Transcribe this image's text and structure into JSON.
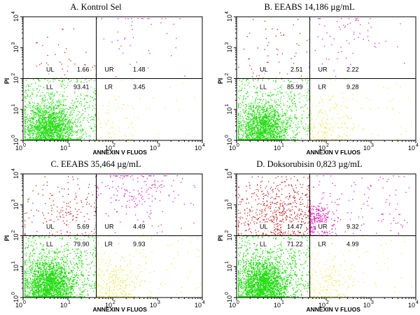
{
  "chart_data": [
    {
      "type": "scatter",
      "title": "A. Kontrol Sel",
      "xlabel": "ANNEXIN V FLUOS",
      "ylabel": "PI",
      "x_scale": "log",
      "y_scale": "log",
      "xlim": [
        1,
        10000
      ],
      "ylim": [
        1,
        10000
      ],
      "x_ticks": [
        "10",
        "10",
        "10",
        "10",
        "10"
      ],
      "x_tick_exponents": [
        "0",
        "1",
        "2",
        "3",
        "4"
      ],
      "y_ticks": [
        "10",
        "10",
        "10",
        "10",
        "10"
      ],
      "y_tick_exponents": [
        "0",
        "1",
        "2",
        "3",
        "4"
      ],
      "quadrant_gate": {
        "x": 43,
        "y": 100
      },
      "quadrants": [
        {
          "label": "UL",
          "value": "1.66"
        },
        {
          "label": "UR",
          "value": "1.48"
        },
        {
          "label": "LL",
          "value": "93.41"
        },
        {
          "label": "LR",
          "value": "3.45"
        }
      ]
    },
    {
      "type": "scatter",
      "title": "B. EEABS 14,186 µg/mL",
      "xlabel": "ANNEXIN V FLUOS",
      "ylabel": "PI",
      "x_scale": "log",
      "y_scale": "log",
      "xlim": [
        1,
        10000
      ],
      "ylim": [
        1,
        10000
      ],
      "x_ticks": [
        "10",
        "10",
        "10",
        "10",
        "10"
      ],
      "x_tick_exponents": [
        "0",
        "1",
        "2",
        "3",
        "4"
      ],
      "y_ticks": [
        "10",
        "10",
        "10",
        "10",
        "10"
      ],
      "y_tick_exponents": [
        "0",
        "1",
        "2",
        "3",
        "4"
      ],
      "quadrant_gate": {
        "x": 43,
        "y": 100
      },
      "quadrants": [
        {
          "label": "UL",
          "value": "2.51"
        },
        {
          "label": "UR",
          "value": "2.22"
        },
        {
          "label": "LL",
          "value": "85.99"
        },
        {
          "label": "LR",
          "value": "9.28"
        }
      ]
    },
    {
      "type": "scatter",
      "title": "C. EEABS 35,464 µg/mL",
      "xlabel": "ANNEXIN V FLUOS",
      "ylabel": "PI",
      "x_scale": "log",
      "y_scale": "log",
      "xlim": [
        1,
        10000
      ],
      "ylim": [
        1,
        10000
      ],
      "x_ticks": [
        "10",
        "10",
        "10",
        "10",
        "10"
      ],
      "x_tick_exponents": [
        "0",
        "1",
        "2",
        "3",
        "4"
      ],
      "y_ticks": [
        "10",
        "10",
        "10",
        "10",
        "10"
      ],
      "y_tick_exponents": [
        "0",
        "1",
        "2",
        "3",
        "4"
      ],
      "quadrant_gate": {
        "x": 43,
        "y": 100
      },
      "quadrants": [
        {
          "label": "UL",
          "value": "5.69"
        },
        {
          "label": "UR",
          "value": "4.49"
        },
        {
          "label": "LL",
          "value": "79.90"
        },
        {
          "label": "LR",
          "value": "9.93"
        }
      ]
    },
    {
      "type": "scatter",
      "title": "D. Doksorubisin 0,823 µg/mL",
      "xlabel": "ANNEXIN V FLUOS",
      "ylabel": "PI",
      "x_scale": "log",
      "y_scale": "log",
      "xlim": [
        1,
        10000
      ],
      "ylim": [
        1,
        10000
      ],
      "x_ticks": [
        "10",
        "10",
        "10",
        "10",
        "10"
      ],
      "x_tick_exponents": [
        "0",
        "1",
        "2",
        "3",
        "4"
      ],
      "y_ticks": [
        "10",
        "10",
        "10",
        "10",
        "10"
      ],
      "y_tick_exponents": [
        "0",
        "1",
        "2",
        "3",
        "4"
      ],
      "quadrant_gate": {
        "x": 43,
        "y": 100
      },
      "quadrants": [
        {
          "label": "UL",
          "value": "14.47"
        },
        {
          "label": "UR",
          "value": "9.32"
        },
        {
          "label": "LL",
          "value": "71.22"
        },
        {
          "label": "LR",
          "value": "4.99"
        }
      ]
    }
  ],
  "colors": {
    "LL": "#22dd11",
    "LR": "#e8e860",
    "UL": "#c0282a",
    "UR": "#dd22bb",
    "frame": "#000000"
  }
}
